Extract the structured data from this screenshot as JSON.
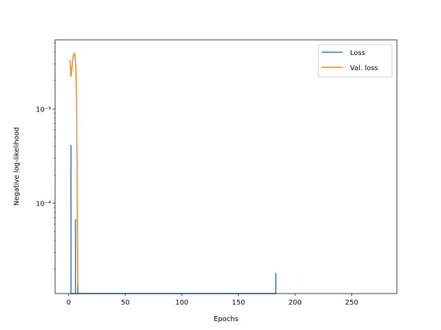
{
  "chart_data": {
    "type": "line",
    "title": "",
    "xlabel": "Epochs",
    "ylabel": "Negative log-likelihood",
    "yscale": "log",
    "xlim": [
      -12,
      290
    ],
    "ylim": [
      1.1e-05,
      0.0054
    ],
    "xticks": [
      0,
      50,
      100,
      150,
      200,
      250
    ],
    "xtick_labels": [
      "0",
      "50",
      "100",
      "150",
      "200",
      "250"
    ],
    "yticks": [
      0.0001,
      0.001
    ],
    "ytick_labels": [
      "10⁻⁴",
      "10⁻³"
    ],
    "grid": false,
    "legend_position": "top-right",
    "series": [
      {
        "name": "Loss",
        "color": "#1f77b4",
        "x": [
          2,
          2,
          2,
          6,
          6,
          6,
          8,
          8,
          8,
          183,
          183,
          183
        ],
        "y": [
          1.1e-05,
          0.00041,
          1.1e-05,
          1.1e-05,
          6.7e-05,
          1.1e-05,
          1.1e-05,
          1.4e-05,
          1.1e-05,
          1.1e-05,
          1.8e-05,
          1.1e-05
        ]
      },
      {
        "name": "Val. loss",
        "color": "#ff7f0e",
        "x": [
          1,
          2,
          3,
          4,
          5,
          6,
          7,
          7.5,
          8,
          8.5
        ],
        "y": [
          0.0033,
          0.0022,
          0.0029,
          0.0037,
          0.0039,
          0.0032,
          0.0014,
          0.0001,
          1.5e-05,
          1.1e-05
        ]
      }
    ]
  }
}
